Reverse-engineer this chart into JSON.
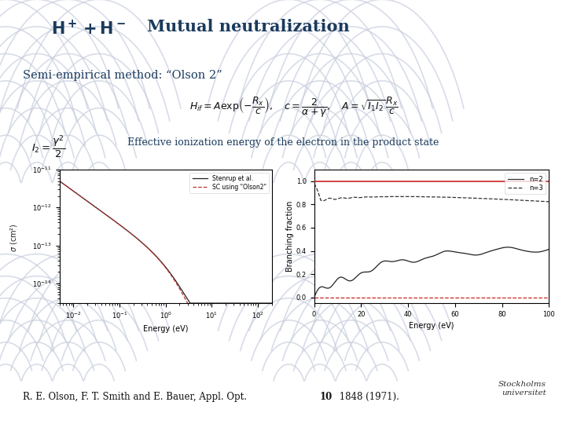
{
  "bg_color": "#ffffff",
  "title_color": "#1a3a5c",
  "text_color": "#333333",
  "watermark_color": "#c8cedd",
  "title_h_plus": "H",
  "title_plus": "+",
  "title_h_minus": "H",
  "title_minus": "−",
  "title_rest": "   Mutual neutralization",
  "semi_text": "Semi-empirical method: “Olson 2”",
  "ionization_text": "Effective ionization energy of the electron in the product state",
  "ref_main": "R. E. Olson, F. T. Smith and E. Bauer, Appl. Opt.  ",
  "ref_bold": "10",
  "ref_end": " 1848 (1971).",
  "stockholm": "Stockholms\nuniversitet",
  "left_xlim": [
    0.005,
    200
  ],
  "left_ylim": [
    3e-15,
    1e-11
  ],
  "right_xlim": [
    0,
    100
  ],
  "right_ylim": [
    -0.05,
    1.1
  ],
  "right_yticks": [
    0.0,
    0.2,
    0.4,
    0.6,
    0.8,
    1.0
  ]
}
